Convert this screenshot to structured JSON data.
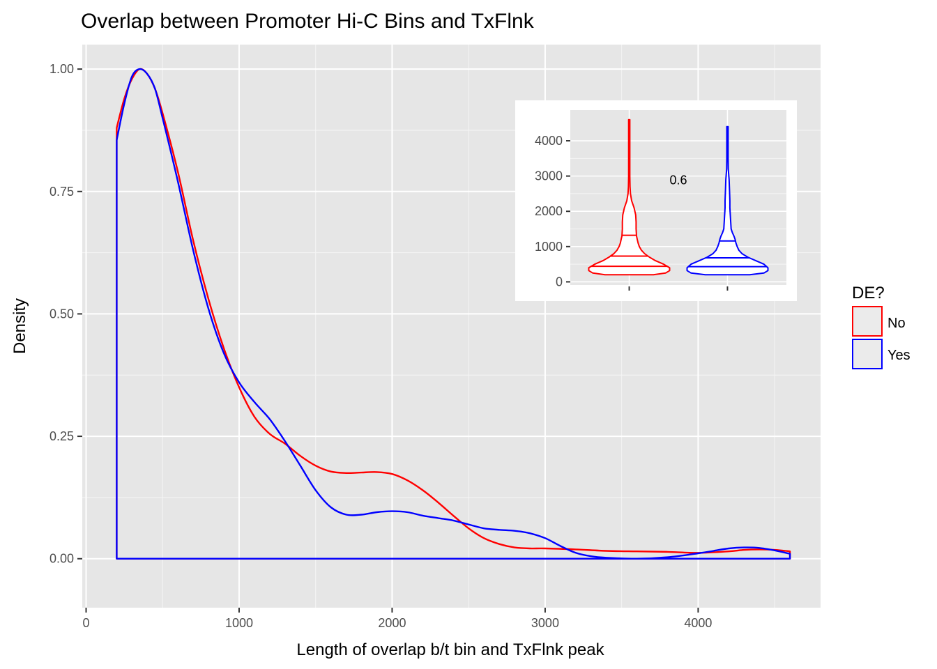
{
  "chart_data": [
    {
      "type": "line",
      "subtype": "density",
      "title": "Overlap between Promoter Hi-C Bins and TxFlnk",
      "xlabel": "Length of overlap b/t bin and TxFlnk peak",
      "ylabel": "Density",
      "xlim": [
        -25,
        4800
      ],
      "ylim": [
        -0.1,
        1.05
      ],
      "xticks": [
        0,
        1000,
        2000,
        3000,
        4000
      ],
      "xtick_labels": [
        "0",
        "1000",
        "2000",
        "3000",
        "4000"
      ],
      "yticks": [
        0,
        0.25,
        0.5,
        0.75,
        1.0
      ],
      "ytick_labels": [
        "0.00",
        "0.25",
        "0.50",
        "0.75",
        "1.00"
      ],
      "grid": true,
      "background": "#e6e6e6",
      "legend": {
        "title": "DE?",
        "position": "right",
        "entries": [
          "No",
          "Yes"
        ]
      },
      "series": [
        {
          "name": "No",
          "color": "#ff0000",
          "points": [
            [
              200,
              0.88
            ],
            [
              250,
              0.94
            ],
            [
              300,
              0.98
            ],
            [
              350,
              1.0
            ],
            [
              400,
              0.99
            ],
            [
              450,
              0.96
            ],
            [
              500,
              0.91
            ],
            [
              600,
              0.79
            ],
            [
              700,
              0.65
            ],
            [
              800,
              0.53
            ],
            [
              900,
              0.43
            ],
            [
              1000,
              0.35
            ],
            [
              1100,
              0.29
            ],
            [
              1200,
              0.255
            ],
            [
              1300,
              0.235
            ],
            [
              1400,
              0.21
            ],
            [
              1500,
              0.19
            ],
            [
              1600,
              0.178
            ],
            [
              1700,
              0.175
            ],
            [
              1800,
              0.176
            ],
            [
              1900,
              0.177
            ],
            [
              2000,
              0.173
            ],
            [
              2100,
              0.16
            ],
            [
              2200,
              0.14
            ],
            [
              2300,
              0.115
            ],
            [
              2400,
              0.088
            ],
            [
              2500,
              0.062
            ],
            [
              2600,
              0.042
            ],
            [
              2700,
              0.03
            ],
            [
              2800,
              0.023
            ],
            [
              2900,
              0.021
            ],
            [
              3000,
              0.021
            ],
            [
              3200,
              0.019
            ],
            [
              3400,
              0.016
            ],
            [
              3600,
              0.015
            ],
            [
              3800,
              0.014
            ],
            [
              4000,
              0.012
            ],
            [
              4200,
              0.015
            ],
            [
              4300,
              0.018
            ],
            [
              4400,
              0.019
            ],
            [
              4500,
              0.018
            ],
            [
              4600,
              0.015
            ]
          ],
          "closed_to_baseline": true
        },
        {
          "name": "Yes",
          "color": "#0000ff",
          "points": [
            [
              200,
              0.855
            ],
            [
              250,
              0.93
            ],
            [
              300,
              0.985
            ],
            [
              350,
              1.0
            ],
            [
              400,
              0.99
            ],
            [
              450,
              0.96
            ],
            [
              500,
              0.9
            ],
            [
              600,
              0.77
            ],
            [
              700,
              0.63
            ],
            [
              800,
              0.51
            ],
            [
              900,
              0.42
            ],
            [
              1000,
              0.36
            ],
            [
              1100,
              0.32
            ],
            [
              1200,
              0.285
            ],
            [
              1300,
              0.24
            ],
            [
              1400,
              0.19
            ],
            [
              1500,
              0.14
            ],
            [
              1600,
              0.105
            ],
            [
              1700,
              0.09
            ],
            [
              1800,
              0.09
            ],
            [
              1900,
              0.095
            ],
            [
              2000,
              0.097
            ],
            [
              2100,
              0.095
            ],
            [
              2200,
              0.088
            ],
            [
              2300,
              0.083
            ],
            [
              2400,
              0.078
            ],
            [
              2500,
              0.07
            ],
            [
              2600,
              0.062
            ],
            [
              2700,
              0.059
            ],
            [
              2800,
              0.057
            ],
            [
              2900,
              0.052
            ],
            [
              3000,
              0.042
            ],
            [
              3100,
              0.026
            ],
            [
              3200,
              0.012
            ],
            [
              3300,
              0.005
            ],
            [
              3400,
              0.002
            ],
            [
              3600,
              0.0
            ],
            [
              3800,
              0.003
            ],
            [
              4000,
              0.011
            ],
            [
              4100,
              0.016
            ],
            [
              4200,
              0.021
            ],
            [
              4300,
              0.023
            ],
            [
              4400,
              0.022
            ],
            [
              4500,
              0.017
            ],
            [
              4600,
              0.01
            ]
          ],
          "closed_to_baseline": true
        }
      ]
    },
    {
      "type": "violin",
      "inset": true,
      "ylim": [
        -90,
        4870
      ],
      "yticks": [
        0,
        1000,
        2000,
        3000,
        4000
      ],
      "ytick_labels": [
        "0",
        "1000",
        "2000",
        "3000",
        "4000"
      ],
      "grid": true,
      "annotation": "0.6",
      "groups": [
        {
          "name": "No",
          "color": "#ff0000",
          "quantiles": [
            440,
            730,
            1320
          ],
          "profile": [
            [
              200,
              0.06
            ],
            [
              250,
              0.09
            ],
            [
              320,
              0.1
            ],
            [
              400,
              0.1
            ],
            [
              500,
              0.085
            ],
            [
              600,
              0.065
            ],
            [
              700,
              0.05
            ],
            [
              800,
              0.038
            ],
            [
              900,
              0.03
            ],
            [
              1000,
              0.025
            ],
            [
              1100,
              0.022
            ],
            [
              1200,
              0.02
            ],
            [
              1300,
              0.018
            ],
            [
              1500,
              0.017
            ],
            [
              1700,
              0.017
            ],
            [
              1900,
              0.016
            ],
            [
              2100,
              0.012
            ],
            [
              2300,
              0.006
            ],
            [
              2500,
              0.003
            ],
            [
              2700,
              0.002
            ],
            [
              3000,
              0.0015
            ],
            [
              3500,
              0.0014
            ],
            [
              4000,
              0.0014
            ],
            [
              4300,
              0.0014
            ],
            [
              4600,
              0.0014
            ]
          ]
        },
        {
          "name": "Yes",
          "color": "#0000ff",
          "quantiles": [
            430,
            680,
            1160
          ],
          "profile": [
            [
              200,
              0.055
            ],
            [
              250,
              0.09
            ],
            [
              320,
              0.1
            ],
            [
              400,
              0.1
            ],
            [
              500,
              0.09
            ],
            [
              600,
              0.07
            ],
            [
              700,
              0.05
            ],
            [
              800,
              0.036
            ],
            [
              900,
              0.028
            ],
            [
              1000,
              0.024
            ],
            [
              1100,
              0.021
            ],
            [
              1200,
              0.019
            ],
            [
              1300,
              0.016
            ],
            [
              1400,
              0.012
            ],
            [
              1500,
              0.009
            ],
            [
              1700,
              0.008
            ],
            [
              1900,
              0.007
            ],
            [
              2100,
              0.006
            ],
            [
              2300,
              0.006
            ],
            [
              2600,
              0.005
            ],
            [
              2900,
              0.004
            ],
            [
              3200,
              0.002
            ],
            [
              3500,
              0.0016
            ],
            [
              3800,
              0.0016
            ],
            [
              4100,
              0.0016
            ],
            [
              4400,
              0.0016
            ]
          ]
        }
      ]
    }
  ]
}
